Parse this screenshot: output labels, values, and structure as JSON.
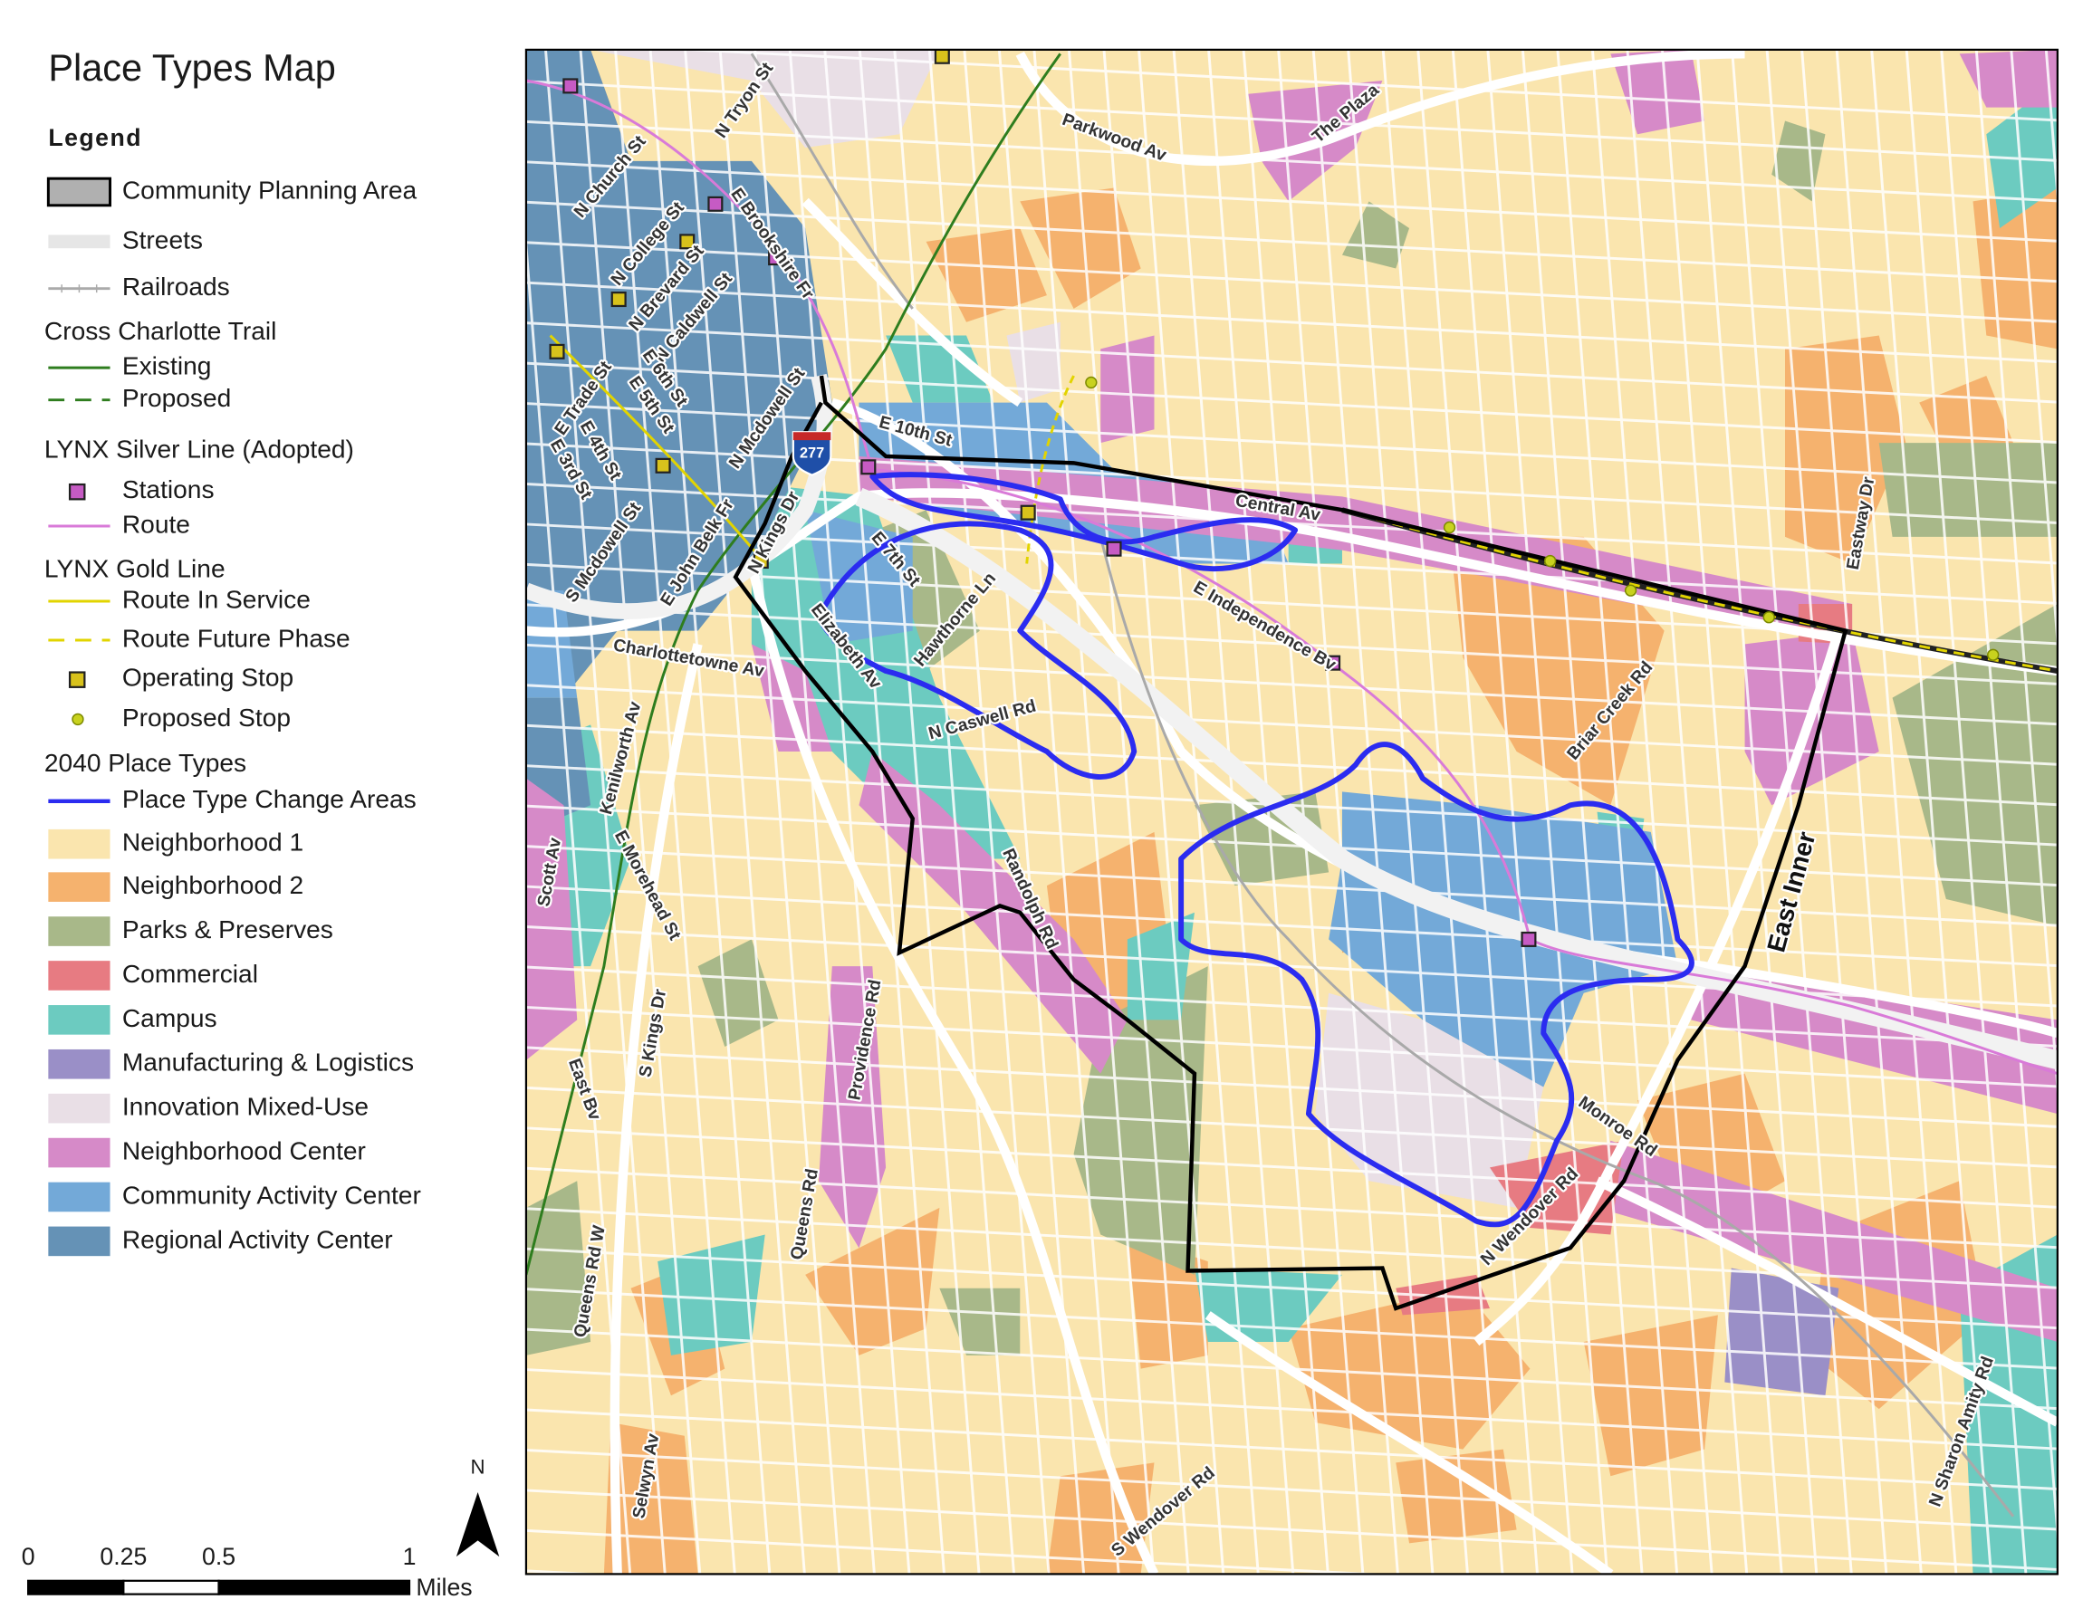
{
  "title": "Place Types Map",
  "legend": {
    "heading": "Legend",
    "sections": [
      {
        "items": [
          {
            "label": "Community Planning Area"
          },
          {
            "label": "Streets"
          },
          {
            "label": "Railroads"
          }
        ]
      },
      {
        "title": "Cross Charlotte Trail",
        "items": [
          {
            "label": "Existing",
            "color": "#2e7d1e"
          },
          {
            "label": "Proposed",
            "color": "#2e7d1e"
          }
        ]
      },
      {
        "title": "LYNX Silver Line (Adopted)",
        "items": [
          {
            "label": "Stations",
            "color": "#c65bc4"
          },
          {
            "label": "Route",
            "color": "#d97ad8"
          }
        ]
      },
      {
        "title": "LYNX Gold Line",
        "items": [
          {
            "label": "Route In Service",
            "color": "#e2d400"
          },
          {
            "label": "Route Future Phase",
            "color": "#e2d400"
          },
          {
            "label": "Operating Stop",
            "color": "#d8c21c"
          },
          {
            "label": "Proposed Stop",
            "color": "#c8d21e"
          }
        ]
      },
      {
        "title": "2040 Place Types",
        "items": [
          {
            "label": "Place Type Change Areas",
            "color": "#2b2cf0"
          },
          {
            "label": "Neighborhood 1",
            "color": "#fae5ae"
          },
          {
            "label": "Neighborhood 2",
            "color": "#f5b26e"
          },
          {
            "label": "Parks & Preserves",
            "color": "#a8b889"
          },
          {
            "label": "Commercial",
            "color": "#e77b82"
          },
          {
            "label": "Campus",
            "color": "#6ccbc0"
          },
          {
            "label": "Manufacturing & Logistics",
            "color": "#9a8fc7"
          },
          {
            "label": "Innovation Mixed-Use",
            "color": "#e9dfe6"
          },
          {
            "label": "Neighborhood Center",
            "color": "#d68ac8"
          },
          {
            "label": "Community Activity Center",
            "color": "#73a9d8"
          },
          {
            "label": "Regional Activity Center",
            "color": "#6592b6"
          }
        ]
      }
    ]
  },
  "map": {
    "labels": [
      "N Tryon St",
      "N Church St",
      "N College St",
      "E Brookshire Fr",
      "N Brevard St",
      "N Caldwell St",
      "E 6th St",
      "E Trade St",
      "E 5th St",
      "E 4th St",
      "N Mcdowell St",
      "E 3rd St",
      "S Mcdowell St",
      "E John Belk Fr",
      "N Kings Dr",
      "E 10th St",
      "E 7th St",
      "Hawthorne Ln",
      "Elizabeth Av",
      "N Caswell Rd",
      "Charlottetowne Av",
      "Central Av",
      "E Independence Bv",
      "Parkwood Av",
      "The Plaza",
      "Eastway Dr",
      "Briar Creek Rd",
      "East Inner",
      "Kenilworth Av",
      "Scott Av",
      "E Morehead St",
      "S Kings Dr",
      "Randolph Rd",
      "Providence Rd",
      "East Bv",
      "Queens Rd",
      "Queens Rd W",
      "Monroe Rd",
      "N Wendover Rd",
      "Selwyn Av",
      "S Wendover Rd",
      "N Sharon Amity Rd",
      "277"
    ],
    "north": "N",
    "scale_bar": {
      "ticks": [
        0,
        0.25,
        0.5,
        1
      ],
      "unit": "Miles"
    }
  }
}
